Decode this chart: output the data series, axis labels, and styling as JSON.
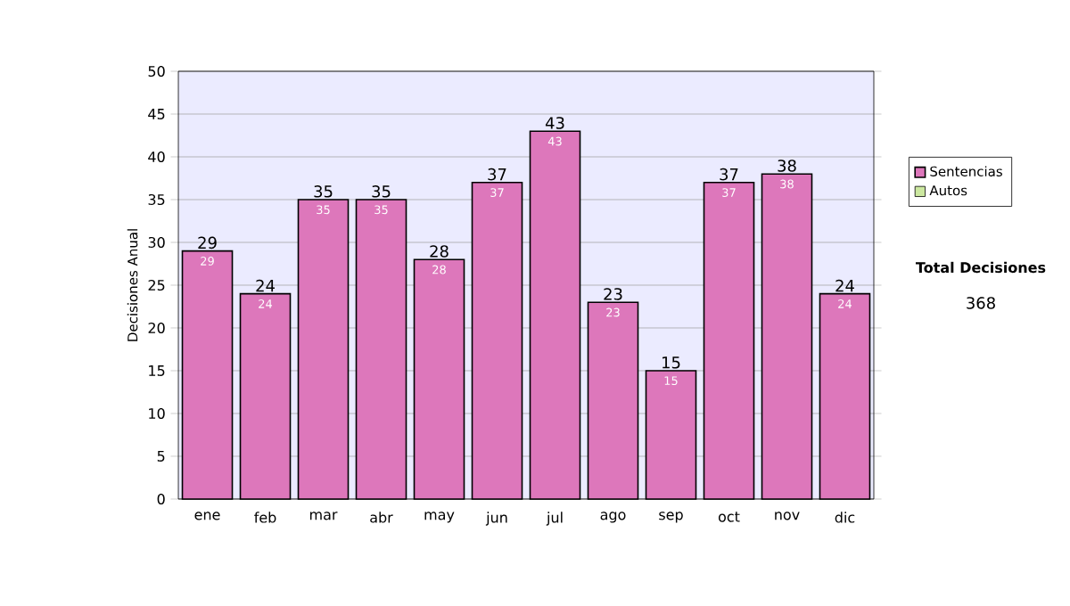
{
  "chart_data": {
    "type": "bar",
    "ylabel": "Decisiones Anual",
    "categories": [
      "ene",
      "feb",
      "mar",
      "abr",
      "may",
      "jun",
      "jul",
      "ago",
      "sep",
      "oct",
      "nov",
      "dic"
    ],
    "series": [
      {
        "name": "Sentencias",
        "color": "#dd77bb",
        "values": [
          29,
          24,
          35,
          35,
          28,
          37,
          43,
          23,
          15,
          37,
          38,
          24
        ]
      },
      {
        "name": "Autos",
        "color": "#cce8a0",
        "values": [
          null,
          null,
          null,
          null,
          null,
          null,
          null,
          null,
          null,
          null,
          null,
          null
        ]
      }
    ],
    "ylim": [
      0,
      50
    ],
    "yticks": [
      0,
      5,
      10,
      15,
      20,
      25,
      30,
      35,
      40,
      45,
      50
    ],
    "stacked": true,
    "totals": [
      "29",
      "24",
      "35",
      "35",
      "28",
      "37",
      "43",
      "23",
      "15",
      "37",
      "38",
      "24"
    ],
    "grid": "y",
    "legend": "right",
    "data_labels": true,
    "annotations": [
      "Total Decisiones",
      "368"
    ]
  }
}
